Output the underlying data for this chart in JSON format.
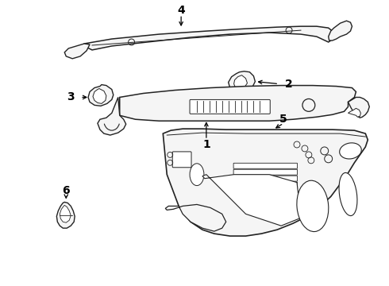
{
  "background_color": "#ffffff",
  "line_color": "#222222",
  "fig_width": 4.9,
  "fig_height": 3.6,
  "dpi": 100,
  "label_fontsize": 10
}
